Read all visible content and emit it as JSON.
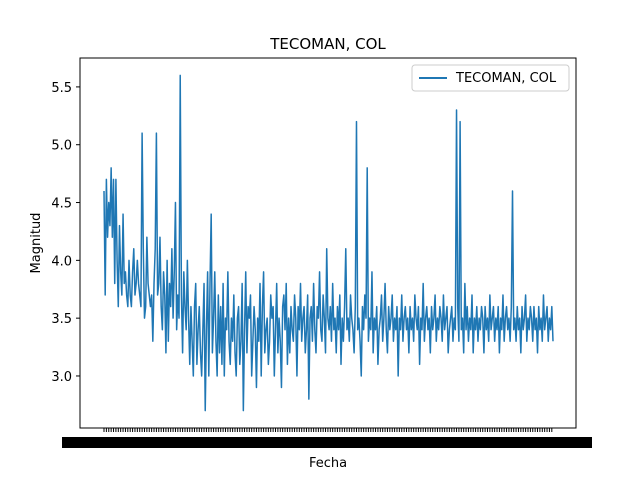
{
  "chart_data": {
    "type": "line",
    "title": "TECOMAN, COL",
    "xlabel": "Fecha",
    "ylabel": "Magnitud",
    "ylim": [
      2.55,
      5.75
    ],
    "yticks": [
      "3.0",
      "3.5",
      "4.0",
      "4.5",
      "5.0",
      "5.5"
    ],
    "xticks_note": "",
    "grid": false,
    "legend": {
      "position": "top-right",
      "entries": [
        "TECOMAN, COL"
      ]
    },
    "colors": {
      "series": "#1f77b4",
      "axes": "#000000",
      "background": "#ffffff"
    },
    "series": [
      {
        "name": "TECOMAN, COL",
        "values": [
          4.6,
          3.7,
          4.7,
          4.2,
          4.5,
          4.3,
          4.8,
          4.2,
          4.7,
          3.8,
          4.7,
          4.0,
          3.6,
          4.3,
          3.9,
          3.7,
          4.4,
          3.8,
          3.9,
          3.7,
          3.6,
          4.0,
          3.7,
          3.6,
          3.9,
          4.1,
          3.7,
          3.8,
          4.0,
          3.8,
          3.7,
          3.6,
          5.1,
          4.1,
          3.5,
          3.6,
          4.2,
          3.8,
          3.7,
          3.6,
          3.7,
          3.3,
          3.8,
          4.1,
          5.1,
          3.7,
          3.8,
          4.2,
          3.6,
          3.4,
          3.9,
          3.7,
          3.2,
          4.0,
          3.3,
          3.8,
          3.6,
          4.1,
          3.5,
          3.9,
          4.5,
          3.4,
          3.7,
          3.5,
          5.6,
          3.7,
          3.2,
          3.9,
          3.6,
          3.4,
          4.0,
          3.5,
          3.1,
          3.6,
          3.3,
          3.0,
          3.6,
          3.8,
          3.1,
          3.4,
          3.6,
          3.2,
          3.0,
          3.4,
          3.8,
          2.7,
          3.4,
          3.9,
          3.0,
          3.8,
          4.4,
          3.2,
          3.5,
          3.9,
          3.3,
          3.0,
          3.7,
          3.2,
          3.6,
          3.1,
          3.8,
          3.0,
          3.5,
          3.4,
          3.9,
          3.3,
          3.1,
          3.5,
          3.3,
          3.7,
          3.2,
          3.0,
          3.5,
          3.6,
          3.1,
          3.3,
          3.8,
          2.7,
          3.4,
          3.9,
          3.2,
          3.6,
          3.5,
          3.7,
          3.0,
          3.3,
          3.6,
          3.4,
          2.9,
          3.5,
          3.3,
          3.8,
          3.0,
          3.6,
          3.9,
          3.2,
          3.4,
          3.5,
          3.1,
          3.3,
          3.7,
          3.5,
          3.6,
          3.0,
          3.4,
          3.8,
          3.2,
          3.5,
          3.3,
          2.9,
          3.6,
          3.7,
          3.4,
          3.8,
          3.1,
          3.5,
          3.2,
          3.6,
          3.4,
          3.3,
          3.7,
          3.5,
          3.0,
          3.6,
          3.4,
          3.8,
          3.3,
          3.5,
          3.6,
          3.2,
          3.4,
          3.7,
          2.8,
          3.5,
          3.6,
          3.3,
          3.8,
          3.4,
          3.2,
          3.6,
          3.5,
          3.9,
          3.4,
          3.3,
          3.7,
          3.5,
          3.2,
          4.1,
          3.5,
          3.4,
          3.6,
          3.3,
          3.8,
          3.4,
          3.5,
          3.2,
          3.6,
          3.4,
          3.7,
          3.1,
          3.5,
          3.3,
          3.6,
          4.1,
          3.4,
          3.5,
          3.3,
          3.7,
          3.5,
          3.4,
          3.2,
          3.6,
          5.2,
          3.4,
          3.5,
          3.3,
          3.0,
          3.6,
          3.4,
          3.7,
          3.5,
          4.8,
          3.3,
          3.5,
          3.4,
          3.9,
          3.2,
          3.5,
          3.4,
          3.6,
          3.1,
          3.4,
          3.5,
          3.7,
          3.3,
          3.5,
          3.8,
          3.4,
          3.2,
          3.6,
          3.4,
          3.5,
          3.7,
          3.3,
          3.5,
          3.4,
          3.6,
          3.0,
          3.5,
          3.4,
          3.7,
          3.3,
          3.5,
          3.6,
          3.4,
          3.5,
          3.2,
          3.6,
          3.4,
          3.5,
          3.3,
          3.7,
          3.5,
          3.4,
          3.6,
          3.1,
          3.5,
          3.4,
          3.8,
          3.3,
          3.5,
          3.6,
          3.4,
          3.5,
          3.2,
          3.6,
          3.4,
          3.5,
          3.7,
          3.3,
          3.5,
          3.4,
          3.6,
          3.5,
          3.3,
          3.7,
          3.4,
          3.5,
          3.6,
          3.2,
          3.4,
          3.5,
          3.6,
          3.3,
          3.5,
          3.4,
          5.3,
          3.6,
          3.3,
          5.2,
          3.4,
          3.5,
          3.2,
          3.8,
          3.4,
          3.6,
          3.3,
          3.5,
          3.4,
          3.7,
          3.2,
          3.5,
          3.4,
          3.6,
          3.3,
          3.5,
          3.4,
          3.6,
          3.5,
          3.2,
          3.6,
          3.4,
          3.5,
          3.3,
          3.7,
          3.4,
          3.5,
          3.6,
          3.3,
          3.5,
          3.4,
          3.6,
          3.2,
          3.5,
          3.4,
          3.7,
          3.3,
          3.5,
          3.6,
          3.4,
          3.5,
          3.3,
          3.6,
          4.6,
          3.4,
          3.5,
          3.3,
          3.6,
          3.4,
          3.5,
          3.2,
          3.6,
          3.4,
          3.5,
          3.7,
          3.3,
          3.5,
          3.4,
          3.6,
          3.5,
          3.3,
          3.6,
          3.4,
          3.5,
          3.2,
          3.6,
          3.4,
          3.5,
          3.3,
          3.7,
          3.4,
          3.5,
          3.6,
          3.3,
          3.5,
          3.4,
          3.6,
          3.3
        ]
      }
    ]
  }
}
